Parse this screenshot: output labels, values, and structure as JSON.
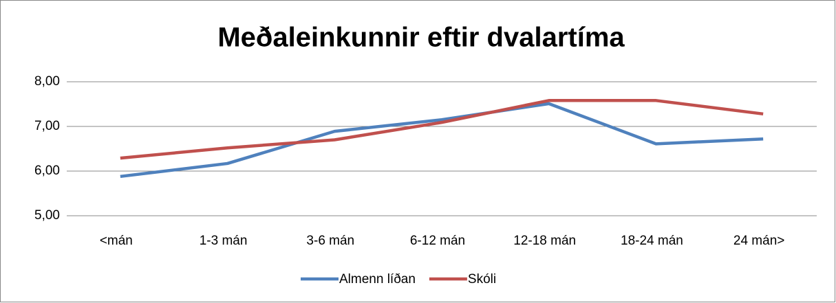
{
  "chart_data": {
    "type": "line",
    "title": "Meðaleinkunnir eftir dvalartíma",
    "categories": [
      "<mán",
      "1-3 mán",
      "3-6 mán",
      "6-12 mán",
      "12-18 mán",
      "18-24 mán",
      "24 mán>"
    ],
    "series": [
      {
        "name": "Almenn líðan",
        "color": "#4f81bd",
        "values": [
          5.88,
          6.17,
          6.89,
          7.15,
          7.51,
          6.61,
          6.72
        ]
      },
      {
        "name": "Skóli",
        "color": "#c0504d",
        "values": [
          6.29,
          6.52,
          6.7,
          7.09,
          7.58,
          7.58,
          7.28
        ]
      }
    ],
    "ylim": [
      5,
      8
    ],
    "yticks": [
      {
        "value": 5,
        "label": "5,00"
      },
      {
        "value": 6,
        "label": "6,00"
      },
      {
        "value": 7,
        "label": "7,00"
      },
      {
        "value": 8,
        "label": "8,00"
      }
    ],
    "grid": true,
    "legend": "bottom"
  }
}
